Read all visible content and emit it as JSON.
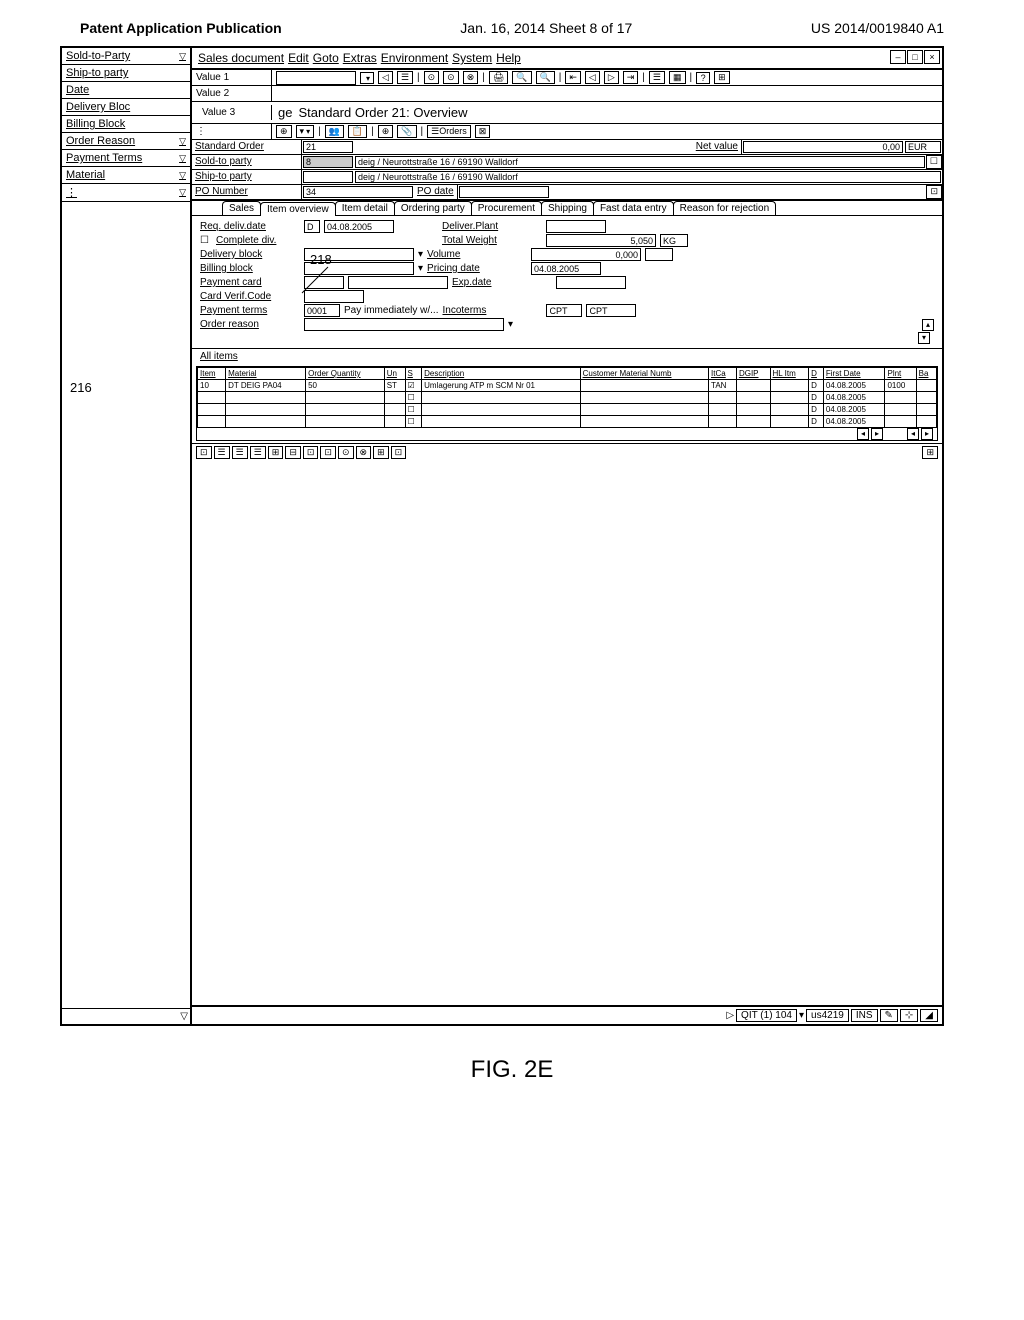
{
  "page_header": {
    "left": "Patent Application Publication",
    "center": "Jan. 16, 2014  Sheet 8 of 17",
    "right": "US 2014/0019840 A1"
  },
  "figure_label": "FIG. 2E",
  "ref_216": "216",
  "ref_218": "218",
  "side_panel": {
    "items": [
      {
        "label": "Sold-to-Party",
        "has_dropdown": true
      },
      {
        "label": "Ship-to party",
        "has_dropdown": false
      },
      {
        "label": "Date",
        "has_dropdown": false
      },
      {
        "label": "Delivery Bloc",
        "has_dropdown": false
      },
      {
        "label": "Billing Block",
        "has_dropdown": false
      },
      {
        "label": "Order Reason",
        "has_dropdown": true
      },
      {
        "label": "Payment Terms",
        "has_dropdown": true
      },
      {
        "label": "Material",
        "has_dropdown": true
      },
      {
        "label": "⋮",
        "has_dropdown": true
      }
    ],
    "bottom_label": "⋮"
  },
  "window": {
    "menu": [
      "Sales document",
      "Edit",
      "Goto",
      "Extras",
      "Environment",
      "System",
      "Help"
    ],
    "val_rows": [
      {
        "label": "Value 1"
      },
      {
        "label": "Value 2"
      },
      {
        "label": "Value 3"
      },
      {
        "label": "⋮"
      }
    ],
    "title_prefix": "ge",
    "title": "Standard Order 21: Overview",
    "header": {
      "standard_order_label": "Standard Order",
      "standard_order_value": "21",
      "net_value_label": "Net value",
      "net_value": "0,00",
      "currency": "EUR",
      "sold_to_label": "Sold-to party",
      "sold_to_value": "8",
      "sold_to_addr": "deig / Neurottstraße 16 / 69190 Walldorf",
      "ship_to_label": "Ship-to party",
      "ship_to_addr": "deig / Neurottstraße 16 / 69190 Walldorf",
      "po_number_label": "PO Number",
      "po_number_value": "34",
      "po_date_label": "PO date"
    },
    "tabs": [
      "Sales",
      "Item overview",
      "Item detail",
      "Ordering party",
      "Procurement",
      "Shipping",
      "Fast data entry",
      "Reason for rejection"
    ],
    "form": {
      "req_deliv_date_label": "Req. deliv.date",
      "req_deliv_date_type": "D",
      "req_deliv_date_value": "04.08.2005",
      "deliver_plant_label": "Deliver.Plant",
      "complete_div_label": "Complete div.",
      "total_weight_label": "Total Weight",
      "total_weight_value": "5,050",
      "total_weight_unit": "KG",
      "delivery_block_label": "Delivery block",
      "volume_label": "Volume",
      "volume_value": "0,000",
      "billing_block_label": "Billing block",
      "pricing_date_label": "Pricing date",
      "pricing_date_value": "04.08.2005",
      "payment_card_label": "Payment card",
      "exp_date_label": "Exp.date",
      "card_verif_label": "Card Verif.Code",
      "payment_terms_label": "Payment terms",
      "payment_terms_value": "0001",
      "payment_terms_desc": "Pay immediately w/...",
      "incoterms_label": "Incoterms",
      "incoterms_value": "CPT",
      "incoterms_desc": "CPT",
      "order_reason_label": "Order reason"
    },
    "items_section_label": "All items",
    "items_table": {
      "columns": [
        "Item",
        "Material",
        "Order Quantity",
        "Un",
        "S",
        "Description",
        "Customer Material Numb",
        "ItCa",
        "DGIP",
        "HL Itm",
        "D",
        "First Date",
        "Plnt",
        "Ba"
      ],
      "rows": [
        {
          "item": "10",
          "material": "DT DEIG PA04",
          "qty": "50",
          "un": "ST",
          "s": "☑",
          "desc": "Umlagerung ATP m SCM Nr 01",
          "cust_mat": "",
          "itca": "TAN",
          "dgip": "",
          "hl_itm": "",
          "d": "D",
          "first_date": "04.08.2005",
          "plnt": "0100",
          "ba": ""
        },
        {
          "item": "",
          "material": "",
          "qty": "",
          "un": "",
          "s": "☐",
          "desc": "",
          "cust_mat": "",
          "itca": "",
          "dgip": "",
          "hl_itm": "",
          "d": "D",
          "first_date": "04.08.2005",
          "plnt": "",
          "ba": ""
        },
        {
          "item": "",
          "material": "",
          "qty": "",
          "un": "",
          "s": "☐",
          "desc": "",
          "cust_mat": "",
          "itca": "",
          "dgip": "",
          "hl_itm": "",
          "d": "D",
          "first_date": "04.08.2005",
          "plnt": "",
          "ba": ""
        },
        {
          "item": "",
          "material": "",
          "qty": "",
          "un": "",
          "s": "☐",
          "desc": "",
          "cust_mat": "",
          "itca": "",
          "dgip": "",
          "hl_itm": "",
          "d": "D",
          "first_date": "04.08.2005",
          "plnt": "",
          "ba": ""
        }
      ]
    },
    "status": {
      "system": "QIT (1) 104",
      "user": "us4219",
      "mode": "INS"
    }
  }
}
